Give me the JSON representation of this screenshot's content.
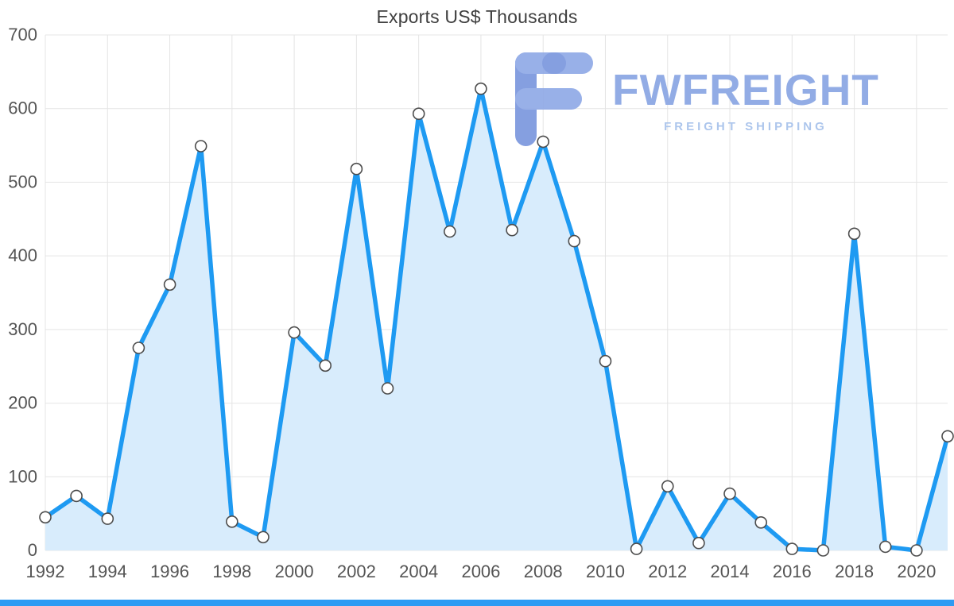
{
  "page": {
    "title": "Exports US$ Thousands"
  },
  "watermark": {
    "brand": "FWFREIGHT",
    "tagline": "FREIGHT SHIPPING",
    "brand_color": "#8da8e4",
    "tagline_color": "#a9c3ec",
    "icon_color": "#93ace7",
    "icon_color_dark": "#7f9adf"
  },
  "footer": {
    "accent_color": "#2e9bf3"
  },
  "chart_data": {
    "type": "line",
    "title": "Exports US$ Thousands",
    "x": [
      1992,
      1993,
      1994,
      1995,
      1996,
      1997,
      1998,
      1999,
      2000,
      2001,
      2002,
      2003,
      2004,
      2005,
      2006,
      2007,
      2008,
      2009,
      2010,
      2011,
      2012,
      2013,
      2014,
      2015,
      2016,
      2017,
      2018,
      2019,
      2020,
      2021
    ],
    "values": [
      45,
      74,
      43,
      275,
      361,
      549,
      39,
      18,
      296,
      251,
      518,
      220,
      593,
      433,
      627,
      435,
      555,
      420,
      257,
      2,
      87,
      10,
      77,
      38,
      2,
      0,
      430,
      5,
      0,
      155
    ],
    "xlabel": "",
    "ylabel": "",
    "ylim": [
      0,
      700
    ],
    "ytick_step": 100,
    "xtick_step": 2,
    "grid": true,
    "legend": "none",
    "line_color": "#1e9af2",
    "area_color": "#d8ecfc",
    "marker_fill": "#ffffff",
    "marker_stroke": "#4d4d4d",
    "grid_color": "#e4e4e4",
    "axis_label_color": "#555555",
    "tick_font_size": 22
  }
}
